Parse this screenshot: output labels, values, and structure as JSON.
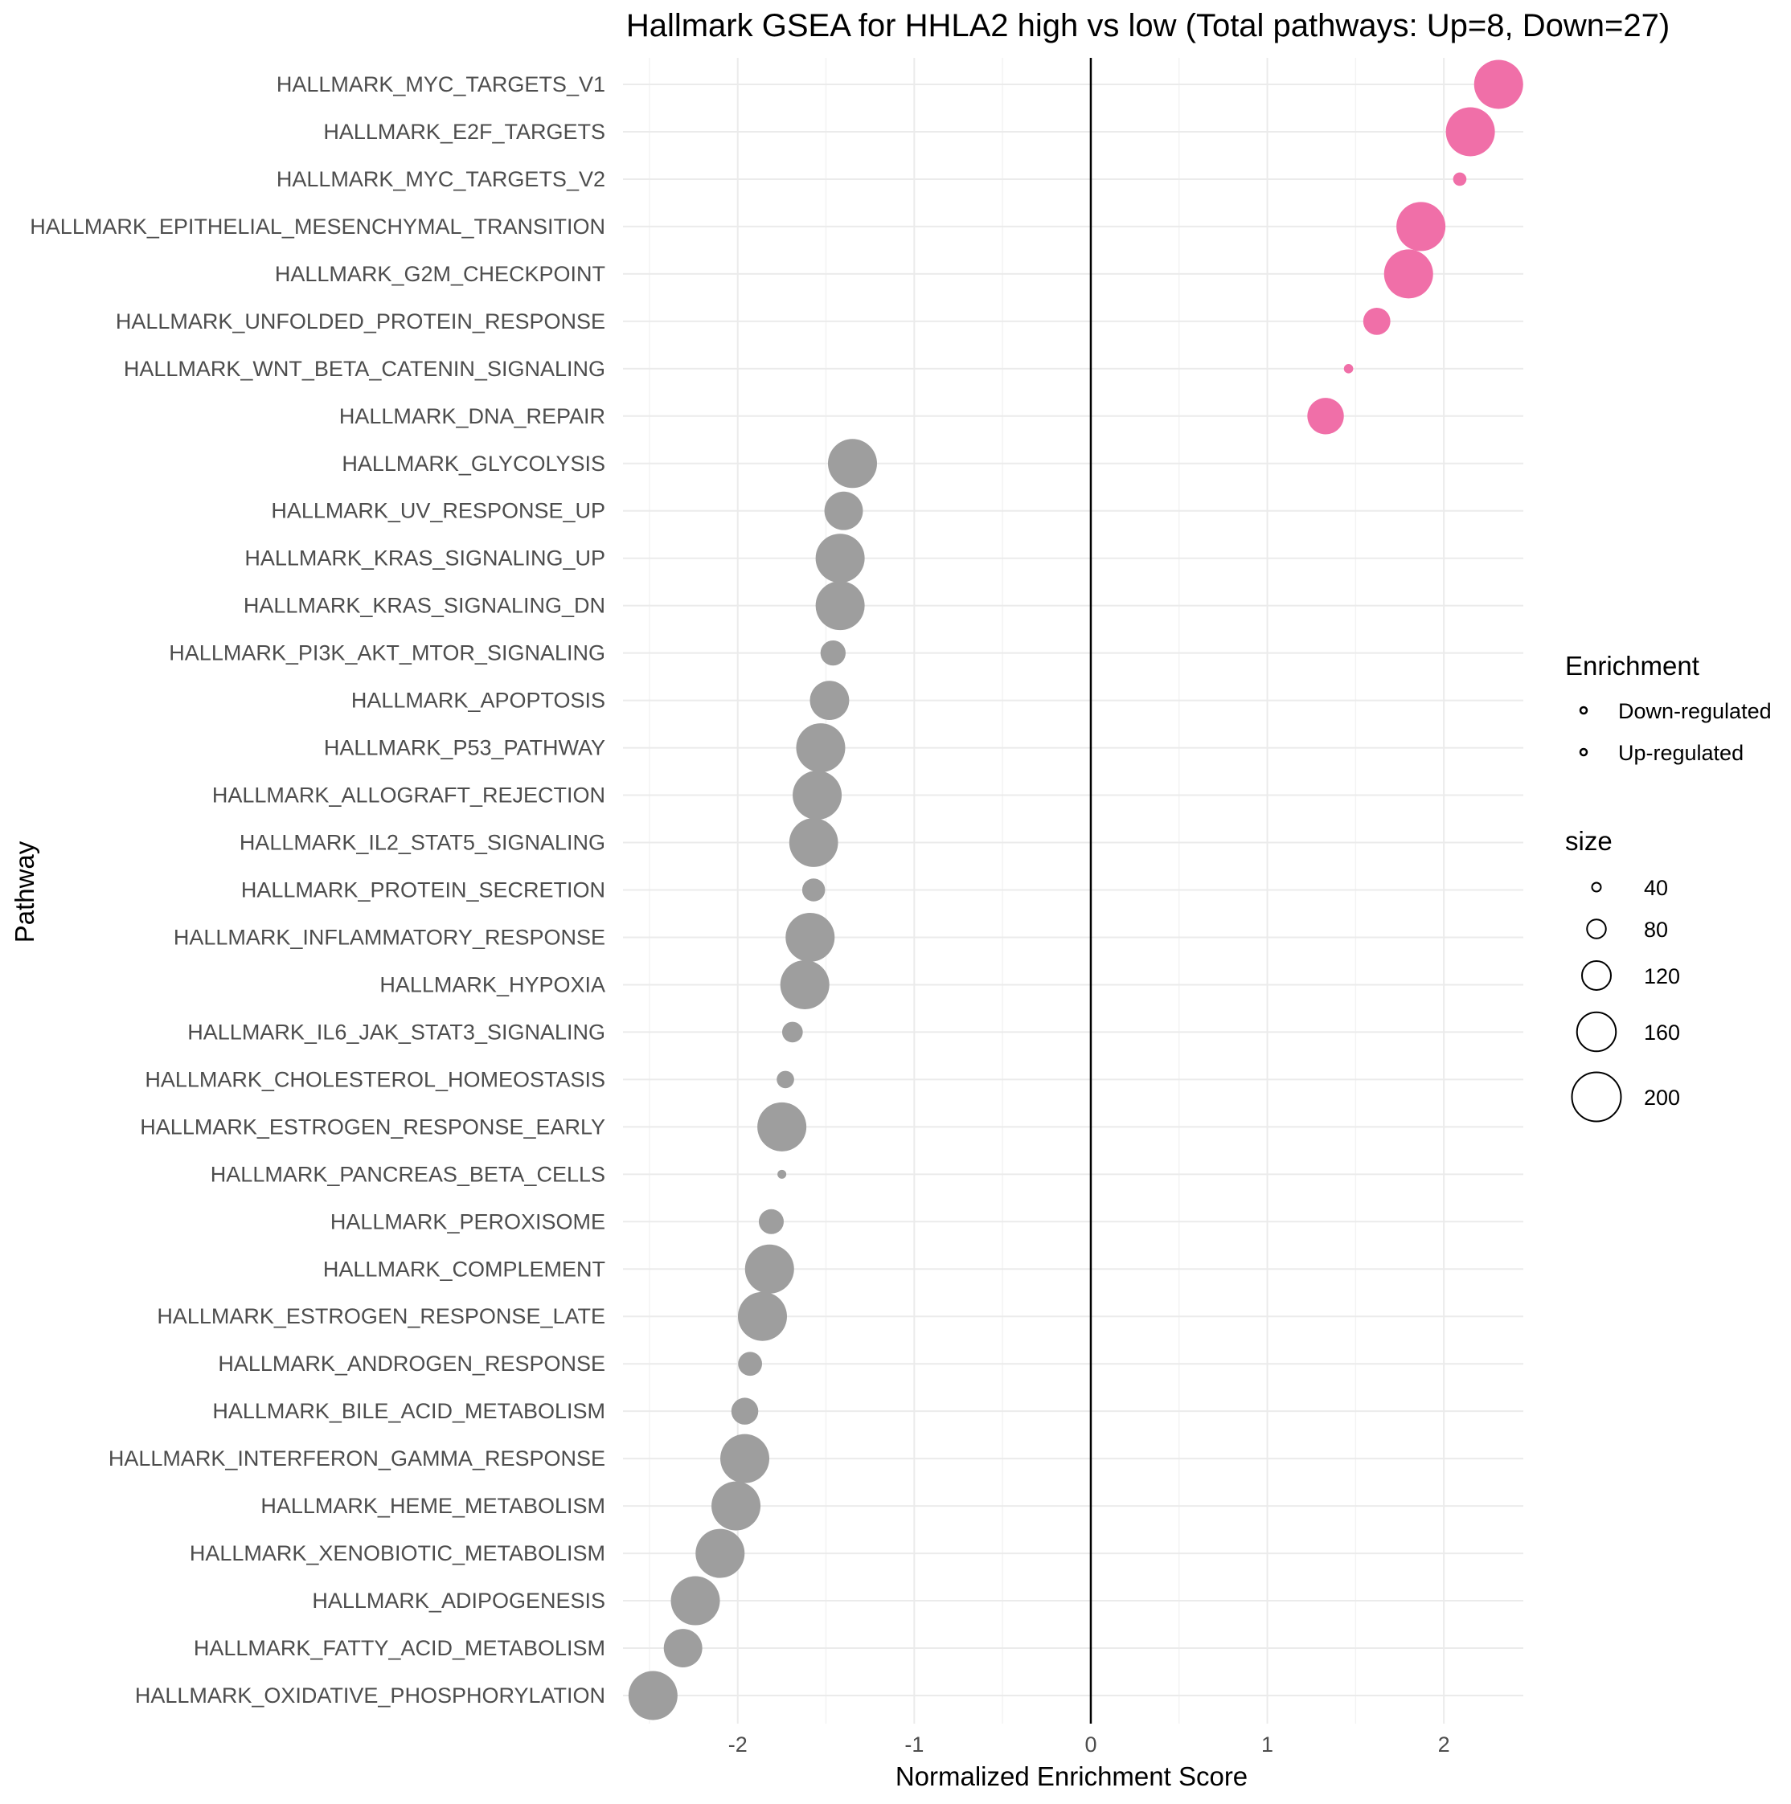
{
  "chart_data": {
    "type": "scatter",
    "title": "Hallmark GSEA for HHLA2 high vs low (Total pathways: Up=8, Down=27)",
    "xlabel": "Normalized Enrichment Score",
    "ylabel": "Pathway",
    "xlim": [
      -2.65,
      2.45
    ],
    "x_ticks": [
      -2,
      -1,
      0,
      1,
      2
    ],
    "reference_line_x": 0,
    "grid": true,
    "colors": {
      "Up-regulated": "#f06fa8",
      "Down-regulated": "#9e9e9e"
    },
    "legend": {
      "position": "right",
      "color_title": "Enrichment",
      "color_entries": [
        "Down-regulated",
        "Up-regulated"
      ],
      "size_title": "size",
      "size_entries": [
        40,
        80,
        120,
        160,
        200
      ]
    },
    "points": [
      {
        "pathway": "HALLMARK_MYC_TARGETS_V1",
        "nes": 2.31,
        "size": 200,
        "group": "Up-regulated"
      },
      {
        "pathway": "HALLMARK_E2F_TARGETS",
        "nes": 2.15,
        "size": 200,
        "group": "Up-regulated"
      },
      {
        "pathway": "HALLMARK_MYC_TARGETS_V2",
        "nes": 2.09,
        "size": 58,
        "group": "Up-regulated"
      },
      {
        "pathway": "HALLMARK_EPITHELIAL_MESENCHYMAL_TRANSITION",
        "nes": 1.87,
        "size": 200,
        "group": "Up-regulated"
      },
      {
        "pathway": "HALLMARK_G2M_CHECKPOINT",
        "nes": 1.8,
        "size": 200,
        "group": "Up-regulated"
      },
      {
        "pathway": "HALLMARK_UNFOLDED_PROTEIN_RESPONSE",
        "nes": 1.62,
        "size": 113,
        "group": "Up-regulated"
      },
      {
        "pathway": "HALLMARK_WNT_BETA_CATENIN_SIGNALING",
        "nes": 1.46,
        "size": 42,
        "group": "Up-regulated"
      },
      {
        "pathway": "HALLMARK_DNA_REPAIR",
        "nes": 1.33,
        "size": 150,
        "group": "Up-regulated"
      },
      {
        "pathway": "HALLMARK_GLYCOLYSIS",
        "nes": -1.35,
        "size": 200,
        "group": "Down-regulated"
      },
      {
        "pathway": "HALLMARK_UV_RESPONSE_UP",
        "nes": -1.4,
        "size": 158,
        "group": "Down-regulated"
      },
      {
        "pathway": "HALLMARK_KRAS_SIGNALING_UP",
        "nes": -1.42,
        "size": 200,
        "group": "Down-regulated"
      },
      {
        "pathway": "HALLMARK_KRAS_SIGNALING_DN",
        "nes": -1.42,
        "size": 200,
        "group": "Down-regulated"
      },
      {
        "pathway": "HALLMARK_PI3K_AKT_MTOR_SIGNALING",
        "nes": -1.46,
        "size": 105,
        "group": "Down-regulated"
      },
      {
        "pathway": "HALLMARK_APOPTOSIS",
        "nes": -1.48,
        "size": 161,
        "group": "Down-regulated"
      },
      {
        "pathway": "HALLMARK_P53_PATHWAY",
        "nes": -1.53,
        "size": 200,
        "group": "Down-regulated"
      },
      {
        "pathway": "HALLMARK_ALLOGRAFT_REJECTION",
        "nes": -1.55,
        "size": 200,
        "group": "Down-regulated"
      },
      {
        "pathway": "HALLMARK_IL2_STAT5_SIGNALING",
        "nes": -1.57,
        "size": 199,
        "group": "Down-regulated"
      },
      {
        "pathway": "HALLMARK_PROTEIN_SECRETION",
        "nes": -1.57,
        "size": 96,
        "group": "Down-regulated"
      },
      {
        "pathway": "HALLMARK_INFLAMMATORY_RESPONSE",
        "nes": -1.59,
        "size": 200,
        "group": "Down-regulated"
      },
      {
        "pathway": "HALLMARK_HYPOXIA",
        "nes": -1.62,
        "size": 200,
        "group": "Down-regulated"
      },
      {
        "pathway": "HALLMARK_IL6_JAK_STAT3_SIGNALING",
        "nes": -1.69,
        "size": 87,
        "group": "Down-regulated"
      },
      {
        "pathway": "HALLMARK_CHOLESTEROL_HOMEOSTASIS",
        "nes": -1.73,
        "size": 74,
        "group": "Down-regulated"
      },
      {
        "pathway": "HALLMARK_ESTROGEN_RESPONSE_EARLY",
        "nes": -1.75,
        "size": 200,
        "group": "Down-regulated"
      },
      {
        "pathway": "HALLMARK_PANCREAS_BETA_CELLS",
        "nes": -1.75,
        "size": 40,
        "group": "Down-regulated"
      },
      {
        "pathway": "HALLMARK_PEROXISOME",
        "nes": -1.81,
        "size": 104,
        "group": "Down-regulated"
      },
      {
        "pathway": "HALLMARK_COMPLEMENT",
        "nes": -1.82,
        "size": 200,
        "group": "Down-regulated"
      },
      {
        "pathway": "HALLMARK_ESTROGEN_RESPONSE_LATE",
        "nes": -1.86,
        "size": 200,
        "group": "Down-regulated"
      },
      {
        "pathway": "HALLMARK_ANDROGEN_RESPONSE",
        "nes": -1.93,
        "size": 100,
        "group": "Down-regulated"
      },
      {
        "pathway": "HALLMARK_BILE_ACID_METABOLISM",
        "nes": -1.96,
        "size": 112,
        "group": "Down-regulated"
      },
      {
        "pathway": "HALLMARK_INTERFERON_GAMMA_RESPONSE",
        "nes": -1.96,
        "size": 200,
        "group": "Down-regulated"
      },
      {
        "pathway": "HALLMARK_HEME_METABOLISM",
        "nes": -2.01,
        "size": 200,
        "group": "Down-regulated"
      },
      {
        "pathway": "HALLMARK_XENOBIOTIC_METABOLISM",
        "nes": -2.1,
        "size": 200,
        "group": "Down-regulated"
      },
      {
        "pathway": "HALLMARK_ADIPOGENESIS",
        "nes": -2.24,
        "size": 200,
        "group": "Down-regulated"
      },
      {
        "pathway": "HALLMARK_FATTY_ACID_METABOLISM",
        "nes": -2.31,
        "size": 158,
        "group": "Down-regulated"
      },
      {
        "pathway": "HALLMARK_OXIDATIVE_PHOSPHORYLATION",
        "nes": -2.48,
        "size": 200,
        "group": "Down-regulated"
      }
    ]
  }
}
